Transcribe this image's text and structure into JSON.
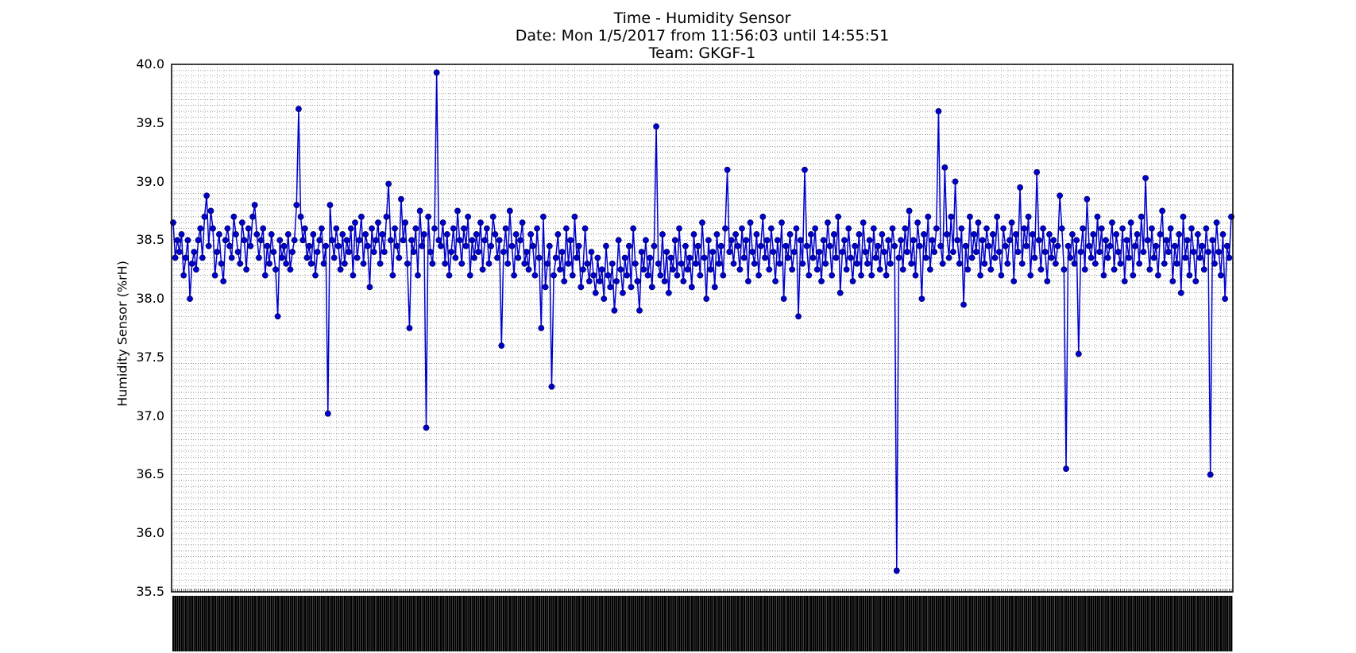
{
  "chart_data": {
    "type": "line",
    "title_lines": [
      "Time - Humidity Sensor",
      "Date: Mon 1/5/2017 from 11:56:03 until 14:55:51",
      "Team: GKGF-1"
    ],
    "xlabel": "",
    "ylabel": "Humidity Sensor (%rH)",
    "ylim": [
      35.5,
      40.0
    ],
    "yticks": [
      "35.5",
      "36.0",
      "36.5",
      "37.0",
      "37.5",
      "38.0",
      "38.5",
      "39.0",
      "39.5",
      "40.0"
    ],
    "grid": true,
    "marker": "circle",
    "series_color": "#0000cc",
    "x_tick_labels_note": "dense, overlapping timestamp labels (illegible)",
    "series": [
      {
        "name": "Humidity",
        "values": [
          38.65,
          38.35,
          38.5,
          38.4,
          38.55,
          38.2,
          38.35,
          38.5,
          38.0,
          38.3,
          38.4,
          38.25,
          38.5,
          38.6,
          38.35,
          38.7,
          38.88,
          38.45,
          38.75,
          38.6,
          38.2,
          38.4,
          38.55,
          38.3,
          38.15,
          38.5,
          38.6,
          38.45,
          38.35,
          38.7,
          38.55,
          38.4,
          38.3,
          38.65,
          38.5,
          38.25,
          38.6,
          38.45,
          38.7,
          38.8,
          38.55,
          38.35,
          38.5,
          38.6,
          38.2,
          38.45,
          38.3,
          38.55,
          38.4,
          38.25,
          37.85,
          38.5,
          38.35,
          38.45,
          38.3,
          38.55,
          38.25,
          38.4,
          38.5,
          38.8,
          39.62,
          38.7,
          38.5,
          38.6,
          38.35,
          38.45,
          38.3,
          38.55,
          38.2,
          38.4,
          38.5,
          38.6,
          38.3,
          38.45,
          37.02,
          38.8,
          38.5,
          38.35,
          38.6,
          38.45,
          38.25,
          38.55,
          38.3,
          38.5,
          38.4,
          38.6,
          38.2,
          38.65,
          38.35,
          38.5,
          38.7,
          38.3,
          38.55,
          38.45,
          38.1,
          38.6,
          38.4,
          38.5,
          38.65,
          38.3,
          38.55,
          38.4,
          38.7,
          38.98,
          38.5,
          38.2,
          38.6,
          38.45,
          38.35,
          38.85,
          38.5,
          38.65,
          38.3,
          37.75,
          38.5,
          38.4,
          38.6,
          38.2,
          38.75,
          38.45,
          38.55,
          36.9,
          38.7,
          38.4,
          38.3,
          38.6,
          39.93,
          38.5,
          38.45,
          38.65,
          38.3,
          38.55,
          38.2,
          38.4,
          38.6,
          38.35,
          38.75,
          38.5,
          38.3,
          38.6,
          38.45,
          38.7,
          38.2,
          38.5,
          38.35,
          38.55,
          38.4,
          38.65,
          38.25,
          38.5,
          38.6,
          38.3,
          38.45,
          38.7,
          38.55,
          38.35,
          38.5,
          37.6,
          38.4,
          38.6,
          38.3,
          38.75,
          38.45,
          38.2,
          38.55,
          38.35,
          38.5,
          38.65,
          38.3,
          38.4,
          38.25,
          38.55,
          38.45,
          38.2,
          38.6,
          38.35,
          37.75,
          38.7,
          38.1,
          38.3,
          38.45,
          37.25,
          38.2,
          38.35,
          38.55,
          38.25,
          38.4,
          38.15,
          38.6,
          38.3,
          38.5,
          38.2,
          38.7,
          38.35,
          38.45,
          38.1,
          38.25,
          38.6,
          38.3,
          38.15,
          38.4,
          38.2,
          38.05,
          38.35,
          38.15,
          38.25,
          38.0,
          38.45,
          38.2,
          38.1,
          38.3,
          37.9,
          38.15,
          38.5,
          38.25,
          38.05,
          38.35,
          38.2,
          38.45,
          38.1,
          38.6,
          38.3,
          38.15,
          37.9,
          38.4,
          38.25,
          38.5,
          38.2,
          38.35,
          38.1,
          38.45,
          39.47,
          38.3,
          38.2,
          38.55,
          38.15,
          38.4,
          38.05,
          38.35,
          38.25,
          38.5,
          38.2,
          38.6,
          38.3,
          38.15,
          38.45,
          38.25,
          38.35,
          38.1,
          38.55,
          38.3,
          38.45,
          38.2,
          38.65,
          38.35,
          38.0,
          38.5,
          38.25,
          38.4,
          38.1,
          38.55,
          38.3,
          38.45,
          38.2,
          38.6,
          39.1,
          38.4,
          38.5,
          38.3,
          38.55,
          38.45,
          38.25,
          38.6,
          38.35,
          38.5,
          38.15,
          38.65,
          38.4,
          38.3,
          38.55,
          38.2,
          38.45,
          38.7,
          38.35,
          38.5,
          38.25,
          38.6,
          38.4,
          38.15,
          38.5,
          38.3,
          38.65,
          38.0,
          38.45,
          38.35,
          38.55,
          38.25,
          38.4,
          38.6,
          37.85,
          38.5,
          38.3,
          39.1,
          38.45,
          38.2,
          38.55,
          38.35,
          38.6,
          38.25,
          38.4,
          38.15,
          38.5,
          38.3,
          38.65,
          38.45,
          38.2,
          38.55,
          38.35,
          38.7,
          38.05,
          38.4,
          38.5,
          38.25,
          38.6,
          38.35,
          38.15,
          38.45,
          38.3,
          38.55,
          38.2,
          38.65,
          38.4,
          38.3,
          38.5,
          38.2,
          38.6,
          38.35,
          38.45,
          38.25,
          38.55,
          38.4,
          38.2,
          38.5,
          38.3,
          38.6,
          38.45,
          35.68,
          38.35,
          38.5,
          38.25,
          38.6,
          38.4,
          38.75,
          38.3,
          38.5,
          38.2,
          38.65,
          38.45,
          38.0,
          38.55,
          38.35,
          38.7,
          38.25,
          38.5,
          38.4,
          38.6,
          39.6,
          38.45,
          38.3,
          39.12,
          38.55,
          38.35,
          38.7,
          38.4,
          39.0,
          38.5,
          38.3,
          38.6,
          37.95,
          38.45,
          38.25,
          38.7,
          38.35,
          38.55,
          38.4,
          38.65,
          38.2,
          38.5,
          38.3,
          38.6,
          38.45,
          38.25,
          38.55,
          38.35,
          38.7,
          38.4,
          38.2,
          38.6,
          38.45,
          38.3,
          38.5,
          38.65,
          38.15,
          38.55,
          38.4,
          38.95,
          38.3,
          38.6,
          38.45,
          38.7,
          38.2,
          38.55,
          38.35,
          39.08,
          38.5,
          38.25,
          38.6,
          38.4,
          38.15,
          38.55,
          38.35,
          38.5,
          38.3,
          38.45,
          38.88,
          38.6,
          38.25,
          36.55,
          38.45,
          38.35,
          38.55,
          38.3,
          38.5,
          37.53,
          38.4,
          38.6,
          38.25,
          38.85,
          38.45,
          38.35,
          38.55,
          38.3,
          38.7,
          38.4,
          38.6,
          38.2,
          38.5,
          38.35,
          38.45,
          38.65,
          38.25,
          38.55,
          38.4,
          38.3,
          38.6,
          38.15,
          38.5,
          38.35,
          38.65,
          38.2,
          38.45,
          38.55,
          38.3,
          38.7,
          38.4,
          39.03,
          38.5,
          38.25,
          38.6,
          38.35,
          38.45,
          38.2,
          38.55,
          38.75,
          38.3,
          38.5,
          38.4,
          38.6,
          38.15,
          38.45,
          38.3,
          38.55,
          38.05,
          38.7,
          38.35,
          38.5,
          38.2,
          38.6,
          38.4,
          38.15,
          38.55,
          38.35,
          38.45,
          38.25,
          38.6,
          38.4,
          36.5,
          38.5,
          38.3,
          38.65,
          38.4,
          38.2,
          38.55,
          38.0,
          38.45,
          38.35,
          38.7
        ]
      }
    ]
  }
}
